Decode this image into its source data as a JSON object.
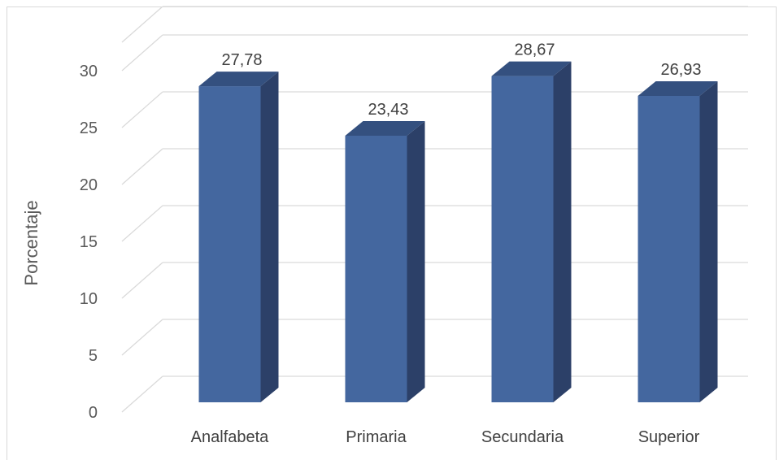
{
  "chart_data": {
    "type": "bar",
    "title": "",
    "xlabel": "",
    "ylabel": "Porcentaje",
    "categories": [
      "Analfabeta",
      "Primaria",
      "Secundaria",
      "Superior"
    ],
    "values": [
      27.78,
      23.43,
      28.67,
      26.93
    ],
    "data_labels": [
      "27,78",
      "23,43",
      "28,67",
      "26,93"
    ],
    "yticks": [
      0,
      5,
      10,
      15,
      20,
      25,
      30
    ],
    "ylim": [
      0,
      32.5
    ],
    "grid": true,
    "legend": "none",
    "style": "3d-column",
    "colors": {
      "bar_front": "#44679F",
      "bar_side": "#2C4068",
      "bar_top": "#34507F",
      "grid": "#D9D9D9",
      "frame": "#D9D9D9"
    }
  }
}
